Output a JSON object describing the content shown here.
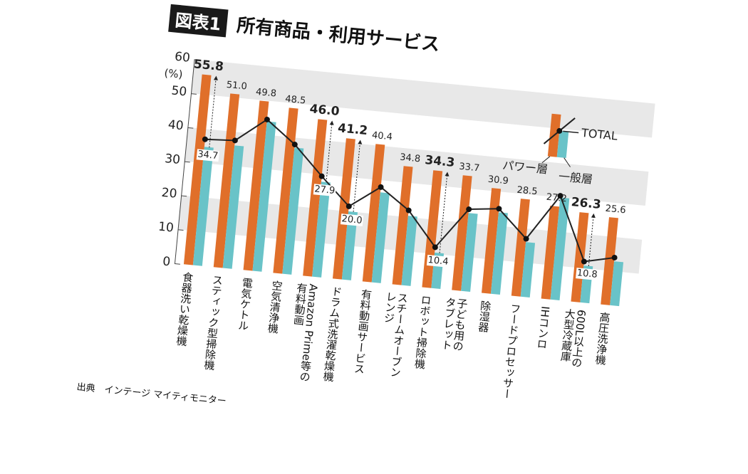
{
  "header": {
    "badge": "図表1",
    "title": "所有商品・利用サービス"
  },
  "source": "出典　インテージ マイティモニター",
  "colors": {
    "power": "#e06f2a",
    "general": "#69c3c8",
    "total": "#222222",
    "band": "#e8e8e8"
  },
  "legend": {
    "power": "パワー層",
    "general": "一般層",
    "total": "TOTAL"
  },
  "chart_data": {
    "type": "bar",
    "title": "所有商品・利用サービス",
    "ylabel": "(%)",
    "ylim": [
      0,
      60
    ],
    "yticks": [
      "0",
      "10",
      "20",
      "30",
      "40",
      "50",
      "60"
    ],
    "grid": "alternating bands",
    "legend_position": "top-right",
    "categories": [
      "食器洗い乾燥機",
      "スティック型掃除機",
      "電気ケトル",
      "空気清浄機",
      "Amazon Prime等の\n有料動画",
      "ドラム式洗濯乾燥機",
      "有料動画サービス",
      "スチームオーブン\nレンジ",
      "ロボット掃除機",
      "子ども用の\nタブレット",
      "除湿器",
      "フードプロセッサー",
      "IHコンロ",
      "600L以上の\n大型冷蔵庫",
      "高圧洗浄機"
    ],
    "series": [
      {
        "name": "パワー層",
        "type": "bar",
        "values": [
          55.8,
          51.0,
          49.8,
          48.5,
          46.0,
          41.2,
          40.4,
          34.8,
          34.3,
          33.7,
          30.9,
          28.5,
          27.2,
          26.3,
          25.6
        ],
        "labels": [
          "55.8",
          "51.0",
          "49.8",
          "48.5",
          "46.0",
          "41.2",
          "40.4",
          "34.8",
          "34.3",
          "33.7",
          "30.9",
          "28.5",
          "27.2",
          "26.3",
          "25.6"
        ],
        "emphasized": [
          true,
          false,
          false,
          false,
          true,
          true,
          false,
          false,
          true,
          false,
          false,
          false,
          false,
          true,
          false
        ]
      },
      {
        "name": "一般層",
        "type": "bar",
        "values": [
          34.7,
          36,
          44,
          37,
          27.9,
          20.0,
          26.5,
          20.5,
          10.4,
          23,
          24,
          16,
          30,
          10.8,
          13
        ],
        "labels": [
          "34.7",
          "",
          "",
          "",
          "27.9",
          "20.0",
          "",
          "",
          "10.4",
          "",
          "",
          "",
          "",
          "10.8",
          ""
        ]
      },
      {
        "name": "TOTAL",
        "type": "line",
        "values": [
          37,
          37.5,
          44.5,
          38,
          29.5,
          21.5,
          28,
          22,
          12,
          24,
          25,
          17,
          30.5,
          12,
          14
        ]
      }
    ]
  }
}
